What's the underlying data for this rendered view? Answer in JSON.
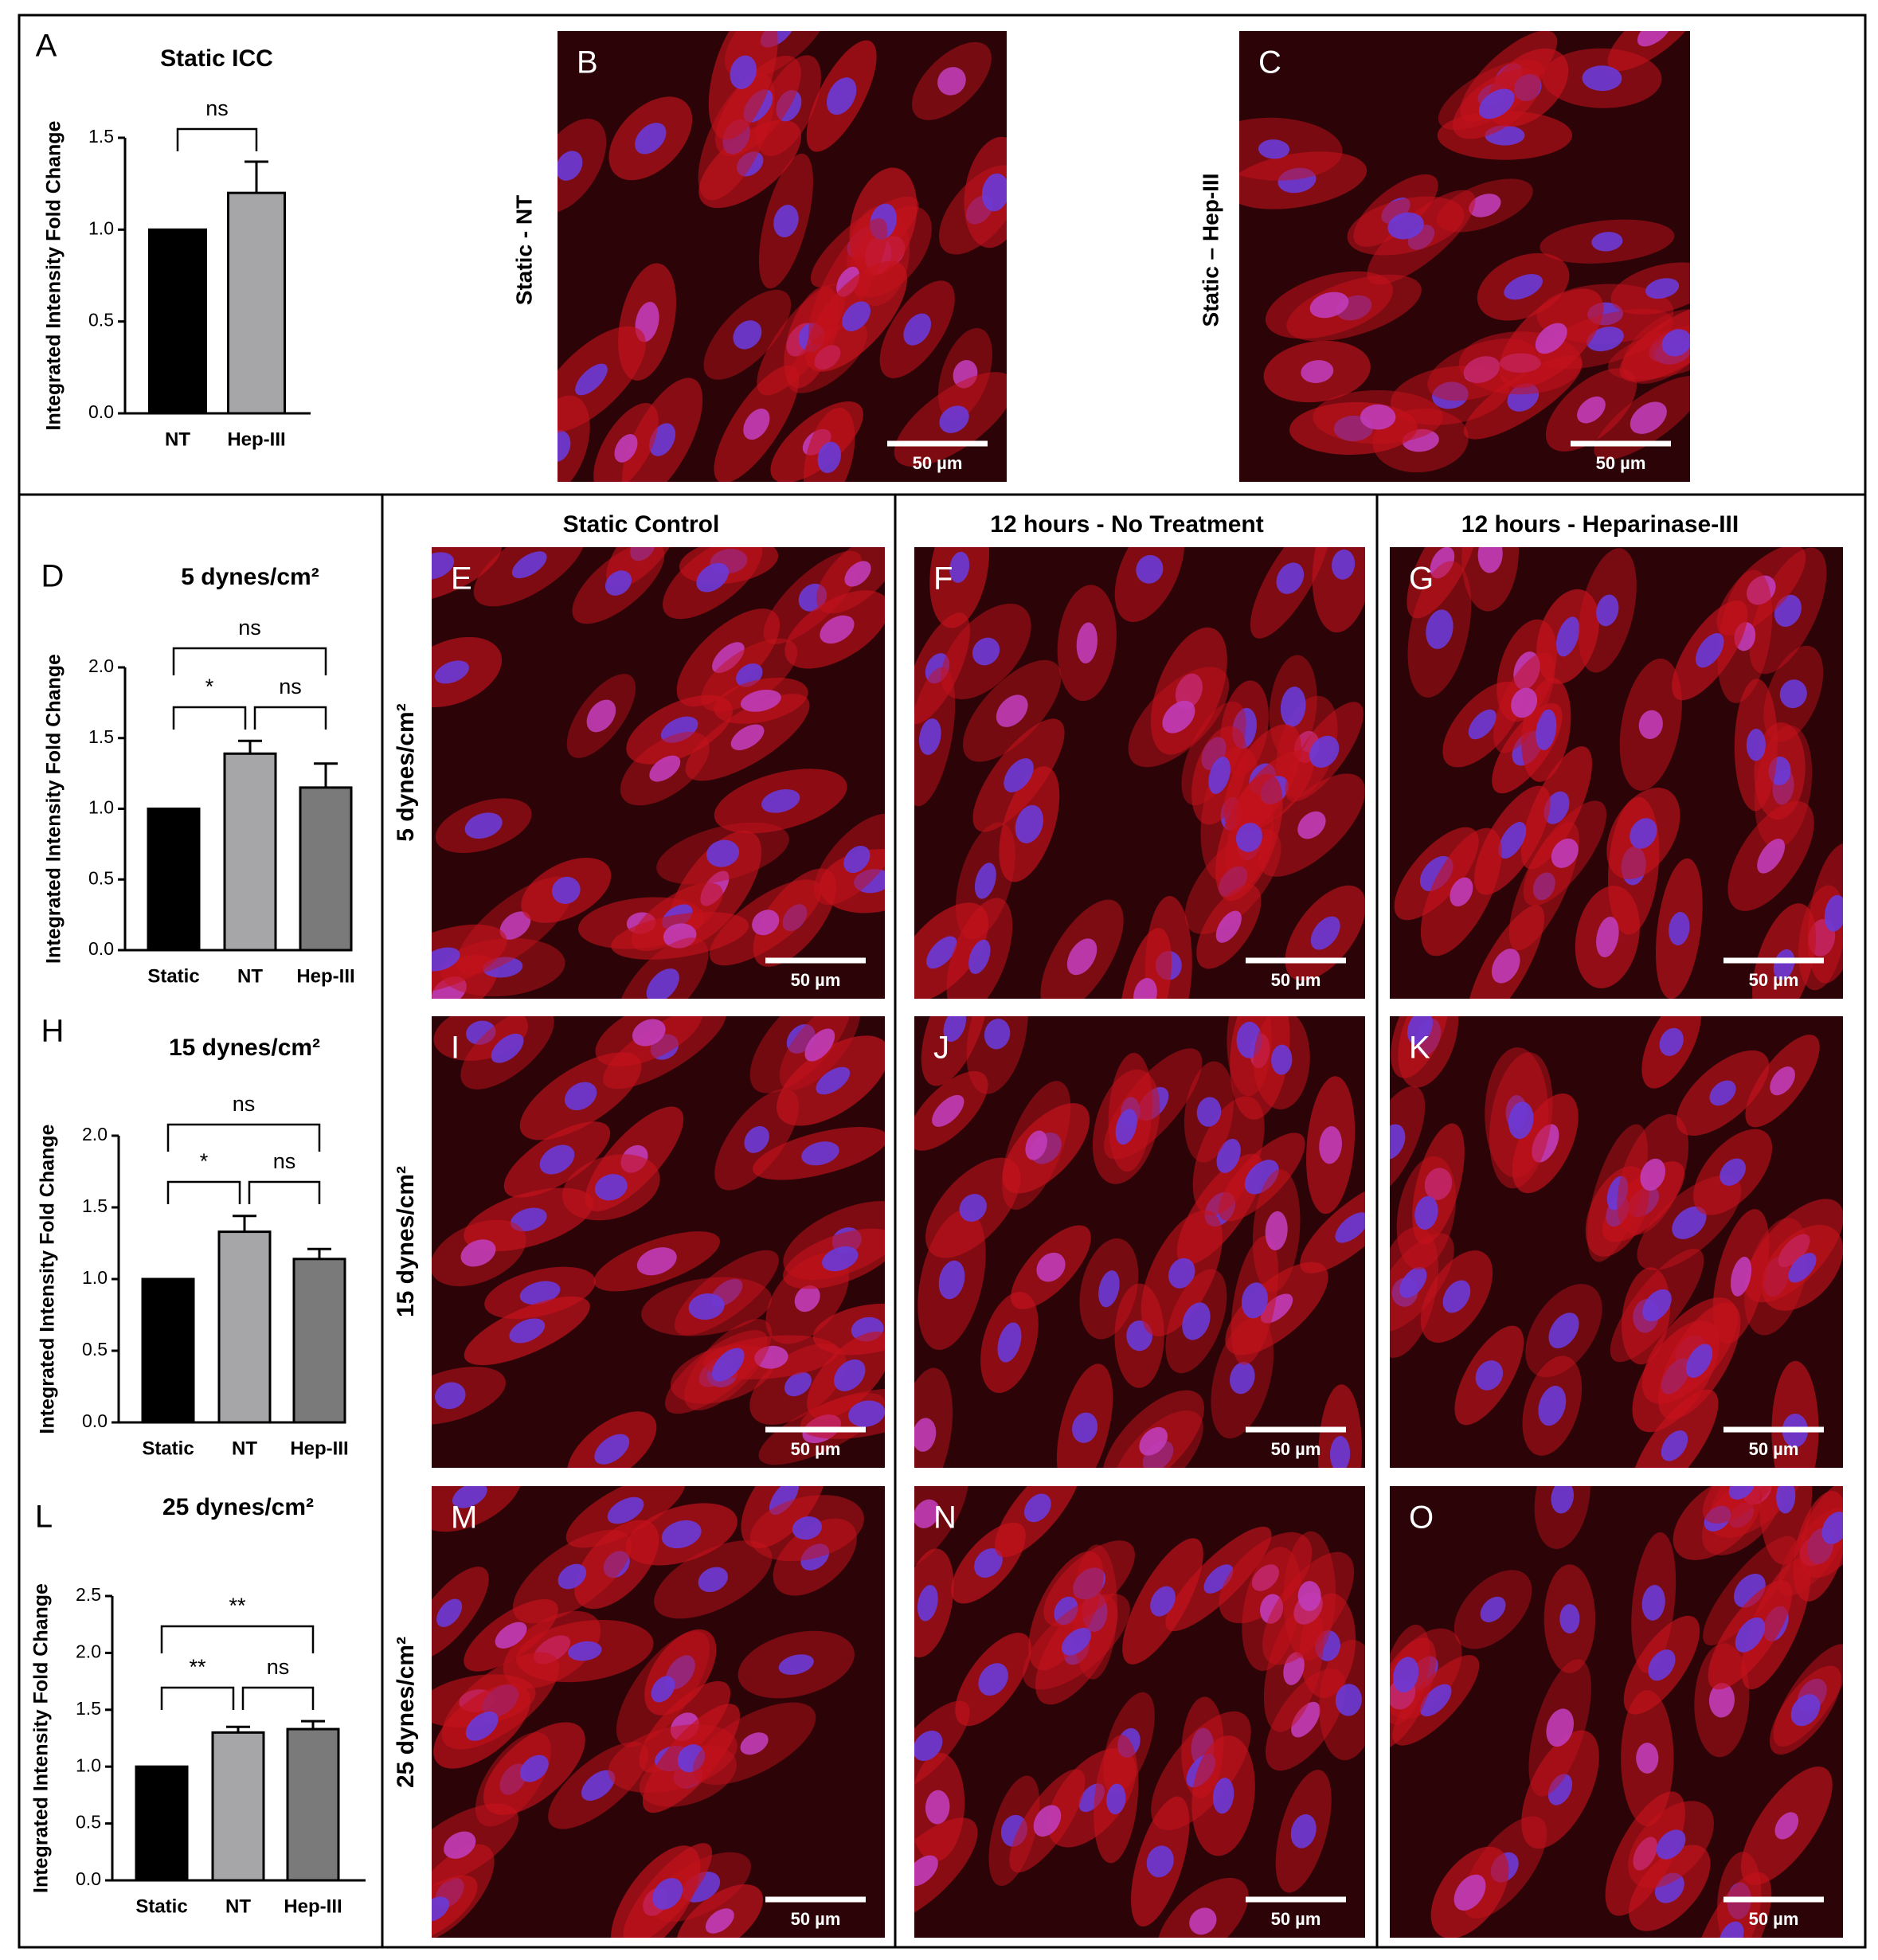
{
  "chart_data": [
    {
      "type": "bar",
      "panel": "A",
      "title": "Static ICC",
      "y_label": "Integrated Intensity Fold Change",
      "categories": [
        "NT",
        "Hep-III"
      ],
      "values": [
        1.0,
        1.2
      ],
      "errors": [
        null,
        0.17
      ],
      "colors": [
        "#000000",
        "#a6a6a8"
      ],
      "ylim": [
        0,
        1.5
      ],
      "yticks": [
        {
          "value": 0,
          "label": "0.0"
        },
        {
          "value": 0.5,
          "label": "0.5"
        },
        {
          "value": 1,
          "label": "1.0"
        },
        {
          "value": 1.5,
          "label": "1.5"
        }
      ],
      "significance": [
        {
          "between": [
            0,
            1
          ],
          "label": "ns"
        }
      ]
    },
    {
      "type": "bar",
      "panel": "D",
      "title": "5 dynes/cm²",
      "y_label": "Integrated Intensity Fold Change",
      "categories": [
        "Static",
        "NT",
        "Hep-III"
      ],
      "values": [
        1.0,
        1.39,
        1.15
      ],
      "errors": [
        null,
        0.09,
        0.17
      ],
      "colors": [
        "#000000",
        "#a6a6a8",
        "#7a7a7a"
      ],
      "ylim": [
        0,
        2
      ],
      "yticks": [
        {
          "value": 0,
          "label": "0.0"
        },
        {
          "value": 0.5,
          "label": "0.5"
        },
        {
          "value": 1,
          "label": "1.0"
        },
        {
          "value": 1.5,
          "label": "1.5"
        },
        {
          "value": 2,
          "label": "2.0"
        }
      ],
      "significance": [
        {
          "between": [
            0,
            2
          ],
          "label": "ns"
        },
        {
          "between": [
            0,
            1
          ],
          "label": "*"
        },
        {
          "between": [
            1,
            2
          ],
          "label": "ns"
        }
      ]
    },
    {
      "type": "bar",
      "panel": "H",
      "title": "15 dynes/cm²",
      "y_label": "Integrated Intensity Fold Change",
      "categories": [
        "Static",
        "NT",
        "Hep-III"
      ],
      "values": [
        1.0,
        1.33,
        1.14
      ],
      "errors": [
        null,
        0.11,
        0.07
      ],
      "colors": [
        "#000000",
        "#a6a6a8",
        "#7a7a7a"
      ],
      "ylim": [
        0,
        2
      ],
      "yticks": [
        {
          "value": 0,
          "label": "0.0"
        },
        {
          "value": 0.5,
          "label": "0.5"
        },
        {
          "value": 1,
          "label": "1.0"
        },
        {
          "value": 1.5,
          "label": "1.5"
        },
        {
          "value": 2,
          "label": "2.0"
        }
      ],
      "significance": [
        {
          "between": [
            0,
            2
          ],
          "label": "ns"
        },
        {
          "between": [
            0,
            1
          ],
          "label": "*"
        },
        {
          "between": [
            1,
            2
          ],
          "label": "ns"
        }
      ]
    },
    {
      "type": "bar",
      "panel": "L",
      "title": "25 dynes/cm²",
      "y_label": "Integrated Intensity Fold Change",
      "categories": [
        "Static",
        "NT",
        "Hep-III"
      ],
      "values": [
        1.0,
        1.3,
        1.33
      ],
      "errors": [
        null,
        0.05,
        0.07
      ],
      "colors": [
        "#000000",
        "#a6a6a8",
        "#7a7a7a"
      ],
      "ylim": [
        0,
        2.5
      ],
      "yticks": [
        {
          "value": 0,
          "label": "0.0"
        },
        {
          "value": 0.5,
          "label": "0.5"
        },
        {
          "value": 1,
          "label": "1.0"
        },
        {
          "value": 1.5,
          "label": "1.5"
        },
        {
          "value": 2,
          "label": "2.0"
        },
        {
          "value": 2.5,
          "label": "2.5"
        }
      ],
      "significance": [
        {
          "between": [
            0,
            2
          ],
          "label": "**"
        },
        {
          "between": [
            0,
            1
          ],
          "label": "**"
        },
        {
          "between": [
            1,
            2
          ],
          "label": "ns"
        }
      ]
    }
  ],
  "images": [
    {
      "panel": "B",
      "label": "Static - NT",
      "scale_bar": "50 µm"
    },
    {
      "panel": "C",
      "label": "Static – Hep-III",
      "scale_bar": "50 µm"
    }
  ],
  "grid": {
    "columns": [
      "Static Control",
      "12 hours - No Treatment",
      "12 hours - Heparinase-III"
    ],
    "rows": [
      "5 dynes/cm²",
      "15 dynes/cm²",
      "25 dynes/cm²"
    ],
    "panels": [
      {
        "panel": "E",
        "scale_bar": "50 µm"
      },
      {
        "panel": "F",
        "scale_bar": "50 µm"
      },
      {
        "panel": "G",
        "scale_bar": "50 µm"
      },
      {
        "panel": "I",
        "scale_bar": "50 µm"
      },
      {
        "panel": "J",
        "scale_bar": "50 µm"
      },
      {
        "panel": "K",
        "scale_bar": "50 µm"
      },
      {
        "panel": "M",
        "scale_bar": "50 µm"
      },
      {
        "panel": "N",
        "scale_bar": "50 µm"
      },
      {
        "panel": "O",
        "scale_bar": "50 µm"
      }
    ]
  }
}
